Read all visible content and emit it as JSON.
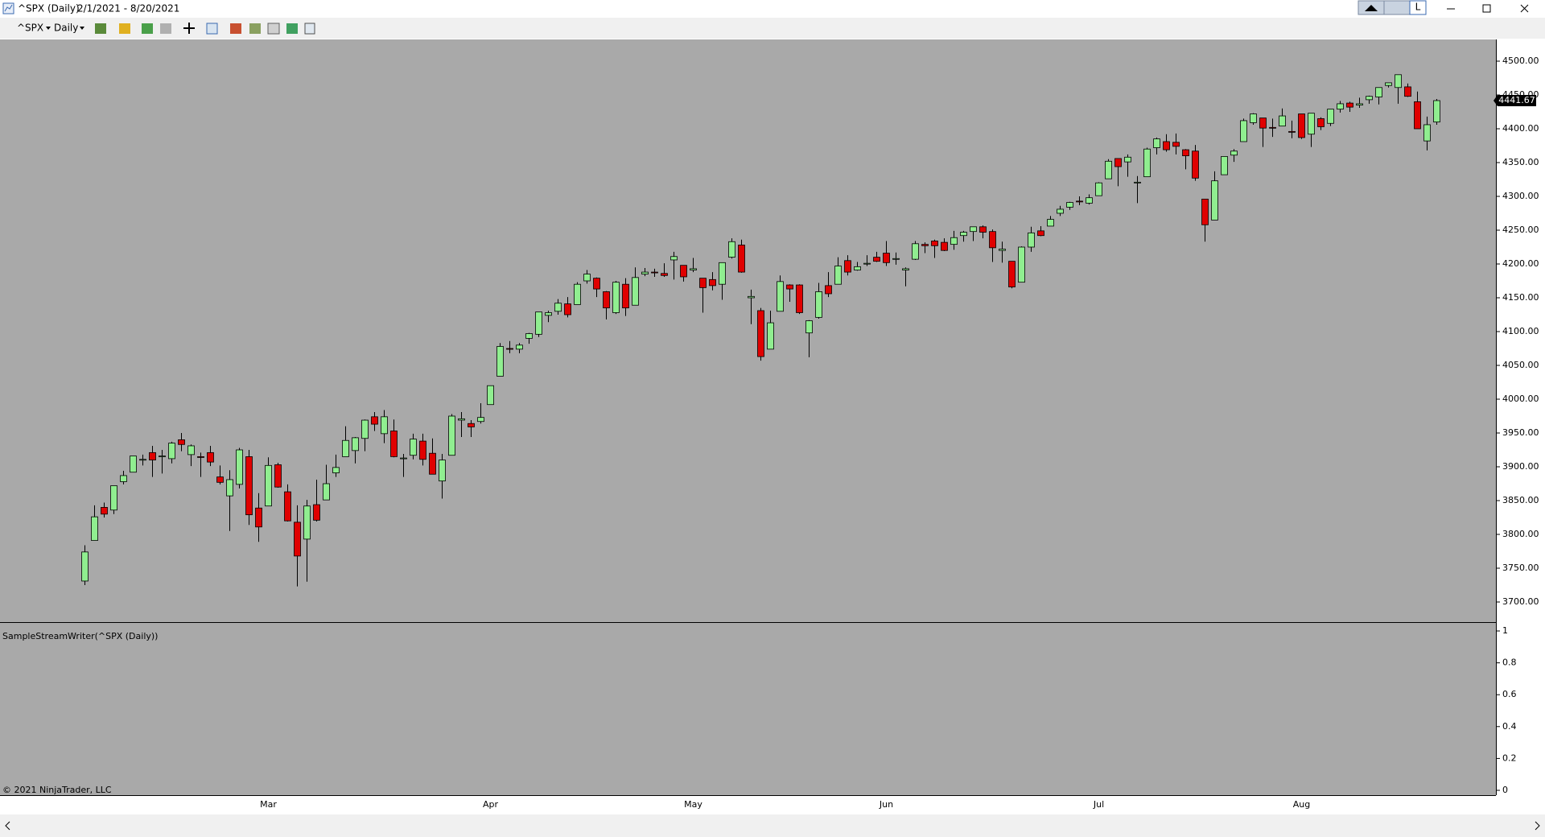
{
  "window": {
    "title": "^SPX (Daily)",
    "date_range": "2/1/2021 - 8/20/2021",
    "link_button": "L"
  },
  "toolbar": {
    "instrument": "^SPX",
    "interval": "Daily"
  },
  "copyright": "© 2021 NinjaTrader, LLC",
  "chart_data": [
    {
      "type": "candlestick",
      "background": "#a9a9a9",
      "up_color": "#90ee90",
      "down_color": "#e00000",
      "categories": [
        null,
        null,
        null,
        null,
        null,
        null,
        null,
        null,
        null,
        null,
        null,
        null,
        null,
        null,
        null,
        null,
        null,
        null,
        null,
        "Mar",
        null,
        null,
        null,
        null,
        null,
        null,
        null,
        null,
        null,
        null,
        null,
        null,
        null,
        null,
        null,
        null,
        null,
        null,
        null,
        null,
        null,
        null,
        "Apr",
        null,
        null,
        null,
        null,
        null,
        null,
        null,
        null,
        null,
        null,
        null,
        null,
        null,
        null,
        null,
        null,
        null,
        null,
        null,
        null,
        "May",
        null,
        null,
        null,
        null,
        null,
        null,
        null,
        null,
        null,
        null,
        null,
        null,
        null,
        null,
        null,
        null,
        null,
        null,
        null,
        "Jun",
        null,
        null,
        null,
        null,
        null,
        null,
        null,
        null,
        null,
        null,
        null,
        null,
        null,
        null,
        null,
        null,
        null,
        null,
        null,
        null,
        null,
        "Jul",
        null,
        null,
        null,
        null,
        null,
        null,
        null,
        null,
        null,
        null,
        null,
        null,
        null,
        null,
        null,
        null,
        null,
        null,
        null,
        null,
        "Aug",
        null,
        null,
        null,
        null,
        null,
        null,
        null,
        null,
        null,
        null,
        null,
        null,
        null,
        null
      ],
      "open": [
        3731,
        3791,
        3840,
        3836,
        3878,
        3892,
        3910,
        3921,
        3916,
        3912,
        3940,
        3918,
        3915,
        3921,
        3885,
        3857,
        3874,
        3915,
        3839,
        3842,
        3903,
        3863,
        3818,
        3793,
        3844,
        3851,
        3891,
        3915,
        3924,
        3942,
        3974,
        3949,
        3953,
        3913,
        3917,
        3938,
        3920,
        3879,
        3917,
        3969,
        3964,
        3967,
        3992,
        4034,
        4075,
        4074,
        4090,
        4096,
        4124,
        4130,
        4141,
        4140,
        4175,
        4179,
        4159,
        4128,
        4170,
        4139,
        4185,
        4188,
        4186,
        4206,
        4198,
        4191,
        4179,
        4177,
        4170,
        4210,
        4228,
        4150,
        4131,
        4074,
        4130,
        4169,
        4169,
        4098,
        4121,
        4168,
        4170,
        4205,
        4191,
        4201,
        4210,
        4216,
        4207,
        4191,
        4207,
        4229,
        4234,
        4232,
        4229,
        4242,
        4248,
        4255,
        4248,
        4220,
        4204,
        4173,
        4225,
        4249,
        4256,
        4275,
        4284,
        4293,
        4290,
        4301,
        4326,
        4356,
        4351,
        4321,
        4329,
        4372,
        4381,
        4380,
        4369,
        4367,
        4296,
        4265,
        4332,
        4361,
        4381,
        4409,
        4416,
        4402,
        4404,
        4396,
        4422,
        4392,
        4415,
        4408,
        4429,
        4438,
        4435,
        4443,
        4447,
        4464,
        4461,
        4462,
        4440,
        4382,
        4410
      ],
      "high": [
        3784,
        3843,
        3847,
        3872,
        3894,
        3916,
        3918,
        3931,
        3925,
        3937,
        3950,
        3933,
        3921,
        3931,
        3902,
        3895,
        3928,
        3925,
        3861,
        3914,
        3906,
        3874,
        3843,
        3851,
        3881,
        3903,
        3918,
        3960,
        3944,
        3970,
        3981,
        3984,
        3970,
        3919,
        3949,
        3949,
        3942,
        3919,
        3978,
        3981,
        3969,
        3994,
        4020,
        4083,
        4086,
        4083,
        4098,
        4129,
        4131,
        4148,
        4151,
        4173,
        4191,
        4180,
        4160,
        4175,
        4179,
        4195,
        4194,
        4193,
        4201,
        4218,
        4198,
        4209,
        4179,
        4188,
        4202,
        4238,
        4236,
        4162,
        4135,
        4131,
        4183,
        4170,
        4170,
        4117,
        4172,
        4188,
        4210,
        4213,
        4203,
        4213,
        4218,
        4234,
        4217,
        4195,
        4234,
        4232,
        4236,
        4238,
        4249,
        4249,
        4255,
        4257,
        4251,
        4233,
        4204,
        4226,
        4255,
        4256,
        4271,
        4286,
        4292,
        4300,
        4303,
        4321,
        4355,
        4356,
        4362,
        4330,
        4372,
        4387,
        4392,
        4393,
        4370,
        4376,
        4296,
        4337,
        4359,
        4370,
        4415,
        4423,
        4416,
        4415,
        4430,
        4412,
        4422,
        4423,
        4417,
        4429,
        4441,
        4440,
        4446,
        4449,
        4461,
        4468,
        4480,
        4467,
        4455,
        4418,
        4444
      ],
      "low": [
        3725,
        3791,
        3825,
        3830,
        3874,
        3892,
        3902,
        3885,
        3890,
        3905,
        3923,
        3901,
        3885,
        3901,
        3874,
        3805,
        3868,
        3814,
        3789,
        3842,
        3869,
        3819,
        3723,
        3730,
        3819,
        3851,
        3885,
        3915,
        3905,
        3923,
        3953,
        3935,
        3914,
        3885,
        3911,
        3902,
        3889,
        3853,
        3917,
        3944,
        3944,
        3964,
        3992,
        4034,
        4068,
        4068,
        4082,
        4092,
        4114,
        4125,
        4121,
        4140,
        4171,
        4151,
        4118,
        4126,
        4123,
        4139,
        4182,
        4181,
        4181,
        4177,
        4174,
        4188,
        4128,
        4161,
        4147,
        4208,
        4187,
        4111,
        4057,
        4074,
        4130,
        4144,
        4126,
        4062,
        4119,
        4151,
        4170,
        4183,
        4190,
        4197,
        4203,
        4197,
        4199,
        4167,
        4206,
        4216,
        4209,
        4219,
        4221,
        4233,
        4234,
        4238,
        4203,
        4202,
        4164,
        4173,
        4218,
        4241,
        4256,
        4271,
        4280,
        4287,
        4288,
        4301,
        4326,
        4315,
        4329,
        4290,
        4329,
        4362,
        4366,
        4362,
        4340,
        4323,
        4233,
        4265,
        4332,
        4351,
        4381,
        4406,
        4373,
        4388,
        4404,
        4386,
        4385,
        4373,
        4398,
        4404,
        4424,
        4425,
        4431,
        4437,
        4436,
        4461,
        4437,
        4447,
        4400,
        4368,
        4406
      ],
      "close": [
        3774,
        3826,
        3830,
        3872,
        3887,
        3916,
        3911,
        3910,
        3916,
        3935,
        3933,
        3931,
        3914,
        3907,
        3877,
        3881,
        3925,
        3829,
        3811,
        3902,
        3870,
        3820,
        3768,
        3842,
        3821,
        3875,
        3899,
        3939,
        3943,
        3969,
        3963,
        3974,
        3915,
        3913,
        3941,
        3911,
        3889,
        3910,
        3975,
        3971,
        3959,
        3973,
        4020,
        4078,
        4074,
        4080,
        4097,
        4129,
        4128,
        4142,
        4125,
        4170,
        4185,
        4163,
        4135,
        4173,
        4135,
        4180,
        4188,
        4187,
        4183,
        4211,
        4181,
        4193,
        4165,
        4168,
        4202,
        4233,
        4188,
        4152,
        4063,
        4113,
        4174,
        4163,
        4128,
        4116,
        4159,
        4156,
        4197,
        4188,
        4196,
        4201,
        4204,
        4202,
        4208,
        4193,
        4230,
        4227,
        4227,
        4220,
        4239,
        4247,
        4255,
        4247,
        4224,
        4222,
        4166,
        4225,
        4246,
        4242,
        4266,
        4281,
        4291,
        4292,
        4298,
        4320,
        4352,
        4344,
        4358,
        4321,
        4370,
        4385,
        4369,
        4374,
        4360,
        4327,
        4258,
        4323,
        4359,
        4367,
        4412,
        4422,
        4401,
        4401,
        4419,
        4395,
        4387,
        4423,
        4403,
        4429,
        4437,
        4432,
        4437,
        4448,
        4461,
        4468,
        4480,
        4448,
        4400,
        4406,
        4441.67
      ],
      "ylim": [
        3700,
        4500
      ],
      "yticks": [
        {
          "value": 3700,
          "label": "3700.00"
        },
        {
          "value": 3750,
          "label": "3750.00"
        },
        {
          "value": 3800,
          "label": "3800.00"
        },
        {
          "value": 3850,
          "label": "3850.00"
        },
        {
          "value": 3900,
          "label": "3900.00"
        },
        {
          "value": 3950,
          "label": "3950.00"
        },
        {
          "value": 4000,
          "label": "4000.00"
        },
        {
          "value": 4050,
          "label": "4050.00"
        },
        {
          "value": 4100,
          "label": "4100.00"
        },
        {
          "value": 4150,
          "label": "4150.00"
        },
        {
          "value": 4200,
          "label": "4200.00"
        },
        {
          "value": 4250,
          "label": "4250.00"
        },
        {
          "value": 4300,
          "label": "4300.00"
        },
        {
          "value": 4350,
          "label": "4350.00"
        },
        {
          "value": 4400,
          "label": "4400.00"
        },
        {
          "value": 4450,
          "label": "4450.00"
        },
        {
          "value": 4500,
          "label": "4500.00"
        }
      ]
    },
    {
      "type": "line",
      "title": "SampleStreamWriter(^SPX (Daily))",
      "background": "#a9a9a9",
      "ylim": [
        0,
        1
      ],
      "yticks": [
        0,
        0.2,
        0.4,
        0.6,
        0.8,
        1
      ]
    }
  ]
}
